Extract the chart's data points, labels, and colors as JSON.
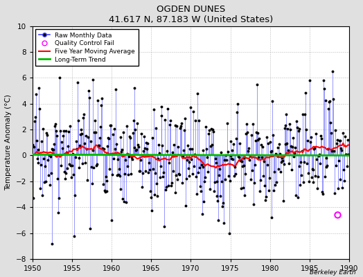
{
  "title": "OGDEN DUNES",
  "subtitle": "41.617 N, 87.183 W (United States)",
  "ylabel": "Temperature Anomaly (°C)",
  "xlabel": "",
  "watermark": "Berkeley Earth",
  "xlim": [
    1950,
    1990
  ],
  "ylim": [
    -8,
    10
  ],
  "yticks": [
    -8,
    -6,
    -4,
    -2,
    0,
    2,
    4,
    6,
    8,
    10
  ],
  "xticks": [
    1950,
    1955,
    1960,
    1965,
    1970,
    1975,
    1980,
    1985,
    1990
  ],
  "bg_color": "#e0e0e0",
  "plot_bg_color": "#ffffff",
  "raw_color": "#4444ff",
  "raw_line_color": "#6666ff",
  "ma_color": "#ff0000",
  "trend_color": "#00bb00",
  "qc_color": "#ff00ff",
  "qc_fail_year": 1988.5,
  "qc_fail_value": -4.6,
  "seed": 17
}
